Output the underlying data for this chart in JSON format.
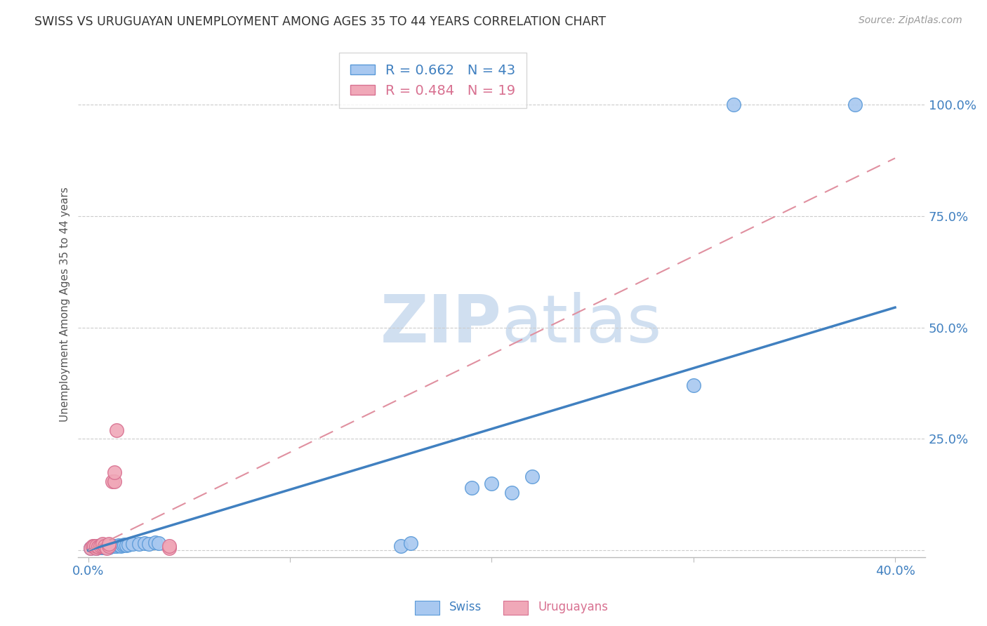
{
  "title": "SWISS VS URUGUAYAN UNEMPLOYMENT AMONG AGES 35 TO 44 YEARS CORRELATION CHART",
  "source": "Source: ZipAtlas.com",
  "ylabel": "Unemployment Among Ages 35 to 44 years",
  "xlim": [
    -0.005,
    0.415
  ],
  "ylim": [
    -0.015,
    1.12
  ],
  "yticks": [
    0.0,
    0.25,
    0.5,
    0.75,
    1.0
  ],
  "ytick_labels": [
    "",
    "25.0%",
    "50.0%",
    "75.0%",
    "100.0%"
  ],
  "xticks": [
    0.0,
    0.1,
    0.2,
    0.3,
    0.4
  ],
  "xtick_labels": [
    "0.0%",
    "",
    "",
    "",
    "40.0%"
  ],
  "swiss_R": 0.662,
  "swiss_N": 43,
  "uruguayan_R": 0.484,
  "uruguayan_N": 19,
  "blue_fill": "#A8C8F0",
  "blue_edge": "#5A9AD8",
  "pink_fill": "#F0A8B8",
  "pink_edge": "#D87090",
  "blue_line": "#4080C0",
  "pink_line": "#E090A0",
  "watermark_color": "#D0DFF0",
  "swiss_x": [
    0.001,
    0.002,
    0.003,
    0.003,
    0.004,
    0.004,
    0.005,
    0.005,
    0.006,
    0.006,
    0.007,
    0.007,
    0.008,
    0.008,
    0.009,
    0.009,
    0.01,
    0.01,
    0.011,
    0.012,
    0.013,
    0.014,
    0.015,
    0.016,
    0.017,
    0.018,
    0.019,
    0.02,
    0.022,
    0.025,
    0.028,
    0.03,
    0.033,
    0.035,
    0.155,
    0.16,
    0.19,
    0.2,
    0.21,
    0.22,
    0.3,
    0.32,
    0.38
  ],
  "swiss_y": [
    0.005,
    0.008,
    0.006,
    0.01,
    0.005,
    0.009,
    0.006,
    0.01,
    0.007,
    0.011,
    0.006,
    0.01,
    0.007,
    0.012,
    0.006,
    0.01,
    0.007,
    0.011,
    0.01,
    0.01,
    0.01,
    0.01,
    0.012,
    0.01,
    0.012,
    0.013,
    0.012,
    0.013,
    0.014,
    0.015,
    0.016,
    0.015,
    0.017,
    0.016,
    0.01,
    0.016,
    0.14,
    0.15,
    0.13,
    0.165,
    0.37,
    1.0,
    1.0
  ],
  "uruguayan_x": [
    0.001,
    0.002,
    0.003,
    0.004,
    0.004,
    0.005,
    0.006,
    0.007,
    0.007,
    0.008,
    0.009,
    0.01,
    0.01,
    0.012,
    0.013,
    0.013,
    0.014,
    0.04,
    0.04
  ],
  "uruguayan_y": [
    0.005,
    0.01,
    0.01,
    0.005,
    0.01,
    0.008,
    0.01,
    0.01,
    0.015,
    0.01,
    0.005,
    0.01,
    0.015,
    0.155,
    0.155,
    0.175,
    0.27,
    0.005,
    0.01
  ],
  "swiss_trend": [
    0.0,
    0.4
  ],
  "swiss_trend_y": [
    0.0,
    0.545
  ],
  "uru_trend": [
    0.0,
    0.4
  ],
  "uru_trend_y": [
    0.0,
    0.88
  ]
}
